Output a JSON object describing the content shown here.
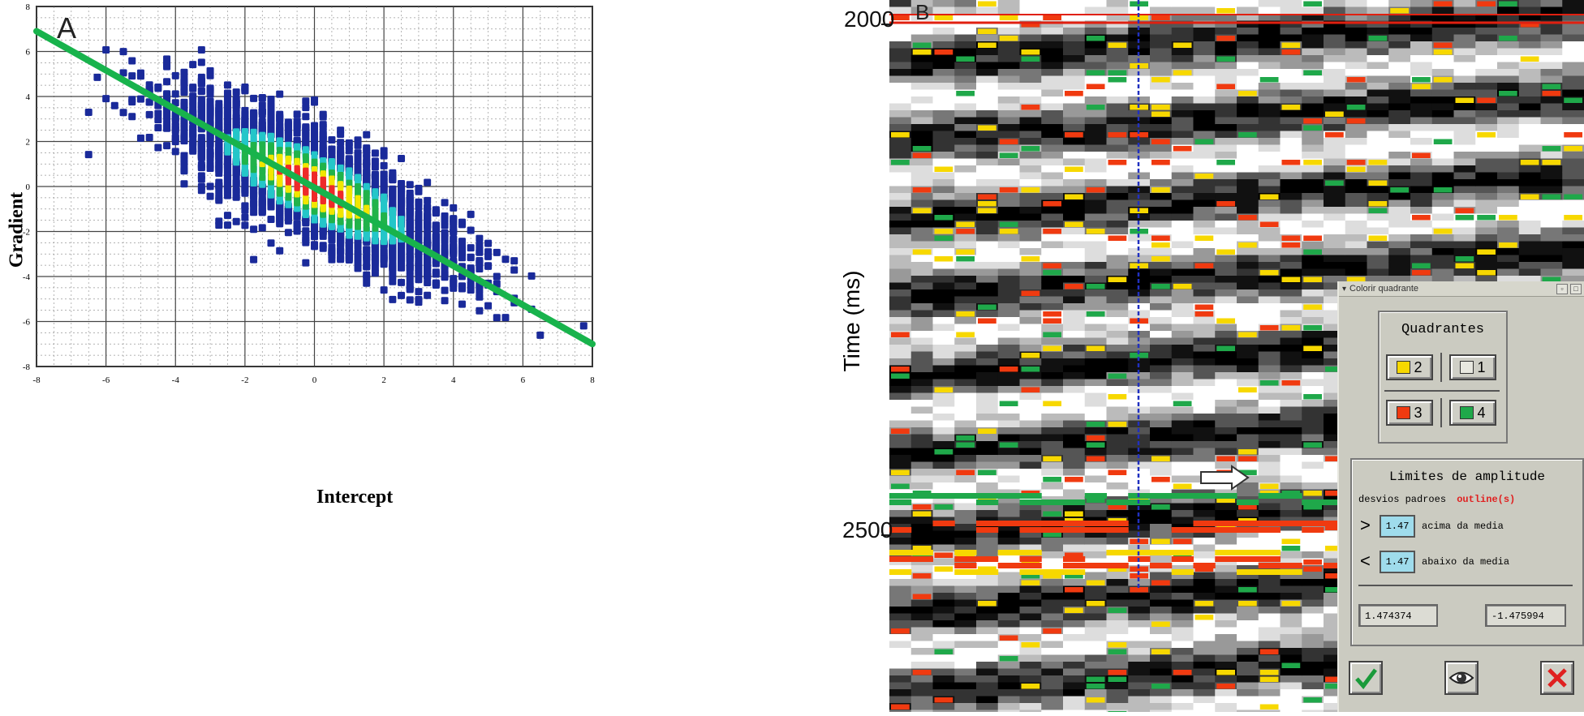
{
  "panel_a": {
    "label": "A",
    "chart_data": {
      "type": "scatter",
      "title": "",
      "xlabel": "Intercept",
      "ylabel": "Gradient",
      "xlim": [
        -8,
        8
      ],
      "ylim": [
        -8,
        8
      ],
      "xticks": [
        "-8",
        "-6",
        "-4",
        "-2",
        "0",
        "2",
        "4",
        "6",
        "8"
      ],
      "yticks": [
        "8",
        "6",
        "4",
        "2",
        "0",
        "-2",
        "-4",
        "-6",
        "-8"
      ],
      "grid": true,
      "point_cloud": {
        "center": [
          0,
          0
        ],
        "trend_slope": -0.85,
        "colors": [
          "#1a2a9a",
          "#24c6c9",
          "#21b34a",
          "#f2e600",
          "#ee2a2a"
        ]
      },
      "trend_line": {
        "x": [
          -8,
          8
        ],
        "y": [
          6.9,
          -7.0
        ],
        "color": "#18b34c"
      }
    }
  },
  "panel_b": {
    "label": "B",
    "axis_label": "Time (ms)",
    "time_ticks": [
      "2000",
      "2500"
    ],
    "colors": {
      "yellow": "#f7d800",
      "red": "#f03a10",
      "green": "#1fa84a",
      "marker": "#2030c0"
    },
    "dialog": {
      "title": "Colorir quadrante",
      "quadrants_title": "Quadrantes",
      "quadrants": [
        {
          "label": "2",
          "color": "#f7d800"
        },
        {
          "label": "1",
          "color": "#e8e8e0"
        },
        {
          "label": "3",
          "color": "#f03a10"
        },
        {
          "label": "4",
          "color": "#1fa84a"
        }
      ],
      "limits_title": "Limites de amplitude",
      "std_label": "desvios padroes",
      "outline_label": "outline(s)",
      "above_symbol": ">",
      "above_value": "1.47",
      "above_label": "acima da media",
      "below_symbol": "<",
      "below_value": "1.47",
      "below_label": "abaixo da media",
      "readout_upper": "1.474374",
      "readout_lower": "-1.475994"
    }
  }
}
